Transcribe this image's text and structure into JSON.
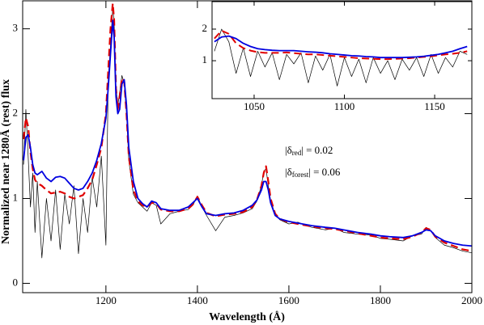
{
  "chart_data": [
    {
      "type": "line",
      "xlabel": "Wavelength (Å)",
      "ylabel": "Normalized near 1280Å (rest) flux",
      "annotations": [
        [
          "|δ",
          "red",
          "| = 0.02"
        ],
        [
          "|δ",
          "forest",
          "| = 0.06"
        ]
      ],
      "xlim": [
        1018,
        2000
      ],
      "ylim": [
        -0.11,
        3.33
      ],
      "xticks": [
        1200,
        1400,
        1600,
        1800,
        2000
      ],
      "yticks": [
        0,
        1,
        2,
        3
      ],
      "x": [
        1020,
        1025,
        1030,
        1035,
        1040,
        1045,
        1050,
        1060,
        1070,
        1080,
        1090,
        1100,
        1110,
        1120,
        1130,
        1140,
        1150,
        1160,
        1170,
        1180,
        1190,
        1200,
        1205,
        1210,
        1215,
        1218,
        1222,
        1226,
        1230,
        1235,
        1240,
        1245,
        1250,
        1260,
        1270,
        1280,
        1290,
        1300,
        1310,
        1320,
        1340,
        1360,
        1380,
        1390,
        1400,
        1410,
        1420,
        1440,
        1460,
        1480,
        1500,
        1520,
        1530,
        1540,
        1545,
        1550,
        1555,
        1560,
        1570,
        1580,
        1600,
        1620,
        1650,
        1680,
        1700,
        1720,
        1750,
        1780,
        1800,
        1820,
        1850,
        1870,
        1890,
        1900,
        1910,
        1920,
        1940,
        1960,
        1980,
        2000
      ],
      "series": [
        {
          "color": "#000000",
          "width": 0.7,
          "dashed": false,
          "values": [
            1.4,
            2.05,
            1.5,
            0.9,
            1.3,
            0.6,
            1.2,
            0.3,
            1.0,
            0.5,
            1.1,
            0.4,
            1.05,
            0.7,
            1.15,
            0.35,
            1.0,
            0.6,
            1.25,
            0.9,
            1.5,
            0.45,
            2.4,
            2.8,
            3.25,
            3.05,
            2.3,
            2.1,
            2.25,
            2.45,
            2.35,
            2.0,
            1.45,
            1.05,
            0.95,
            0.9,
            0.85,
            0.95,
            0.92,
            0.7,
            0.82,
            0.85,
            0.87,
            0.92,
            1.03,
            0.9,
            0.8,
            0.62,
            0.78,
            0.8,
            0.83,
            0.88,
            0.97,
            1.15,
            1.32,
            1.35,
            1.15,
            0.98,
            0.81,
            0.75,
            0.7,
            0.72,
            0.66,
            0.63,
            0.65,
            0.6,
            0.58,
            0.57,
            0.53,
            0.52,
            0.5,
            0.56,
            0.58,
            0.66,
            0.62,
            0.54,
            0.45,
            0.42,
            0.38,
            0.36
          ]
        },
        {
          "color": "#e00000",
          "width": 2.2,
          "dashed": true,
          "values": [
            1.7,
            1.95,
            1.85,
            1.55,
            1.35,
            1.22,
            1.18,
            1.15,
            1.1,
            1.06,
            1.07,
            1.08,
            1.06,
            1.02,
            1.0,
            1.02,
            1.04,
            1.12,
            1.22,
            1.4,
            1.6,
            2.0,
            2.5,
            3.0,
            3.3,
            3.1,
            2.3,
            2.05,
            2.2,
            2.42,
            2.38,
            2.0,
            1.5,
            1.1,
            0.97,
            0.92,
            0.9,
            0.95,
            0.94,
            0.87,
            0.85,
            0.85,
            0.88,
            0.93,
            1.02,
            0.92,
            0.83,
            0.79,
            0.81,
            0.82,
            0.84,
            0.9,
            0.98,
            1.15,
            1.3,
            1.38,
            1.2,
            1.0,
            0.82,
            0.76,
            0.72,
            0.7,
            0.67,
            0.65,
            0.64,
            0.62,
            0.59,
            0.56,
            0.54,
            0.53,
            0.52,
            0.55,
            0.6,
            0.65,
            0.63,
            0.55,
            0.48,
            0.44,
            0.4,
            0.38
          ]
        },
        {
          "color": "#0000e0",
          "width": 1.8,
          "dashed": false,
          "values": [
            1.45,
            1.72,
            1.75,
            1.6,
            1.4,
            1.3,
            1.28,
            1.32,
            1.24,
            1.2,
            1.25,
            1.26,
            1.24,
            1.18,
            1.12,
            1.1,
            1.12,
            1.2,
            1.3,
            1.45,
            1.65,
            1.95,
            2.3,
            2.7,
            3.1,
            2.9,
            2.2,
            2.0,
            2.05,
            2.35,
            2.4,
            2.1,
            1.6,
            1.2,
            1.0,
            0.94,
            0.9,
            0.97,
            0.95,
            0.88,
            0.86,
            0.86,
            0.9,
            0.95,
            1.0,
            0.9,
            0.82,
            0.8,
            0.82,
            0.83,
            0.86,
            0.92,
            0.98,
            1.1,
            1.2,
            1.2,
            1.1,
            0.95,
            0.8,
            0.76,
            0.73,
            0.71,
            0.68,
            0.66,
            0.65,
            0.63,
            0.6,
            0.58,
            0.56,
            0.55,
            0.54,
            0.56,
            0.6,
            0.63,
            0.62,
            0.56,
            0.5,
            0.47,
            0.45,
            0.44
          ]
        }
      ]
    },
    {
      "type": "line",
      "xlim": [
        1026.7,
        1170.6
      ],
      "ylim": [
        -0.2,
        2.87
      ],
      "xticks": [
        1050,
        1100,
        1150
      ],
      "yticks": [
        1,
        2
      ],
      "x": [
        1028,
        1032,
        1036,
        1040,
        1044,
        1048,
        1052,
        1056,
        1060,
        1064,
        1068,
        1072,
        1076,
        1080,
        1084,
        1088,
        1092,
        1096,
        1100,
        1104,
        1108,
        1112,
        1116,
        1120,
        1124,
        1128,
        1132,
        1136,
        1140,
        1144,
        1148,
        1152,
        1156,
        1160,
        1164,
        1168
      ],
      "series": [
        {
          "color": "#000000",
          "width": 0.7,
          "dashed": false,
          "values": [
            1.3,
            2.0,
            1.6,
            0.6,
            1.4,
            0.5,
            1.3,
            0.8,
            1.25,
            0.4,
            1.2,
            0.9,
            1.25,
            0.3,
            1.15,
            0.7,
            1.2,
            0.2,
            1.1,
            0.5,
            1.05,
            0.3,
            1.1,
            0.6,
            1.0,
            0.4,
            1.05,
            0.7,
            1.1,
            0.5,
            1.2,
            0.6,
            1.1,
            0.8,
            1.3,
            1.2
          ]
        },
        {
          "color": "#e00000",
          "width": 2.0,
          "dashed": true,
          "values": [
            1.7,
            1.95,
            1.85,
            1.55,
            1.4,
            1.32,
            1.27,
            1.25,
            1.25,
            1.25,
            1.26,
            1.24,
            1.22,
            1.2,
            1.2,
            1.18,
            1.16,
            1.14,
            1.12,
            1.1,
            1.08,
            1.07,
            1.06,
            1.05,
            1.05,
            1.06,
            1.07,
            1.08,
            1.1,
            1.12,
            1.14,
            1.17,
            1.2,
            1.22,
            1.25,
            1.3
          ]
        },
        {
          "color": "#0000e0",
          "width": 1.8,
          "dashed": false,
          "values": [
            1.6,
            1.75,
            1.78,
            1.7,
            1.55,
            1.45,
            1.38,
            1.35,
            1.33,
            1.32,
            1.32,
            1.32,
            1.3,
            1.28,
            1.27,
            1.25,
            1.22,
            1.2,
            1.18,
            1.16,
            1.15,
            1.13,
            1.12,
            1.1,
            1.1,
            1.1,
            1.1,
            1.11,
            1.12,
            1.14,
            1.17,
            1.2,
            1.25,
            1.3,
            1.38,
            1.45
          ]
        }
      ]
    }
  ]
}
